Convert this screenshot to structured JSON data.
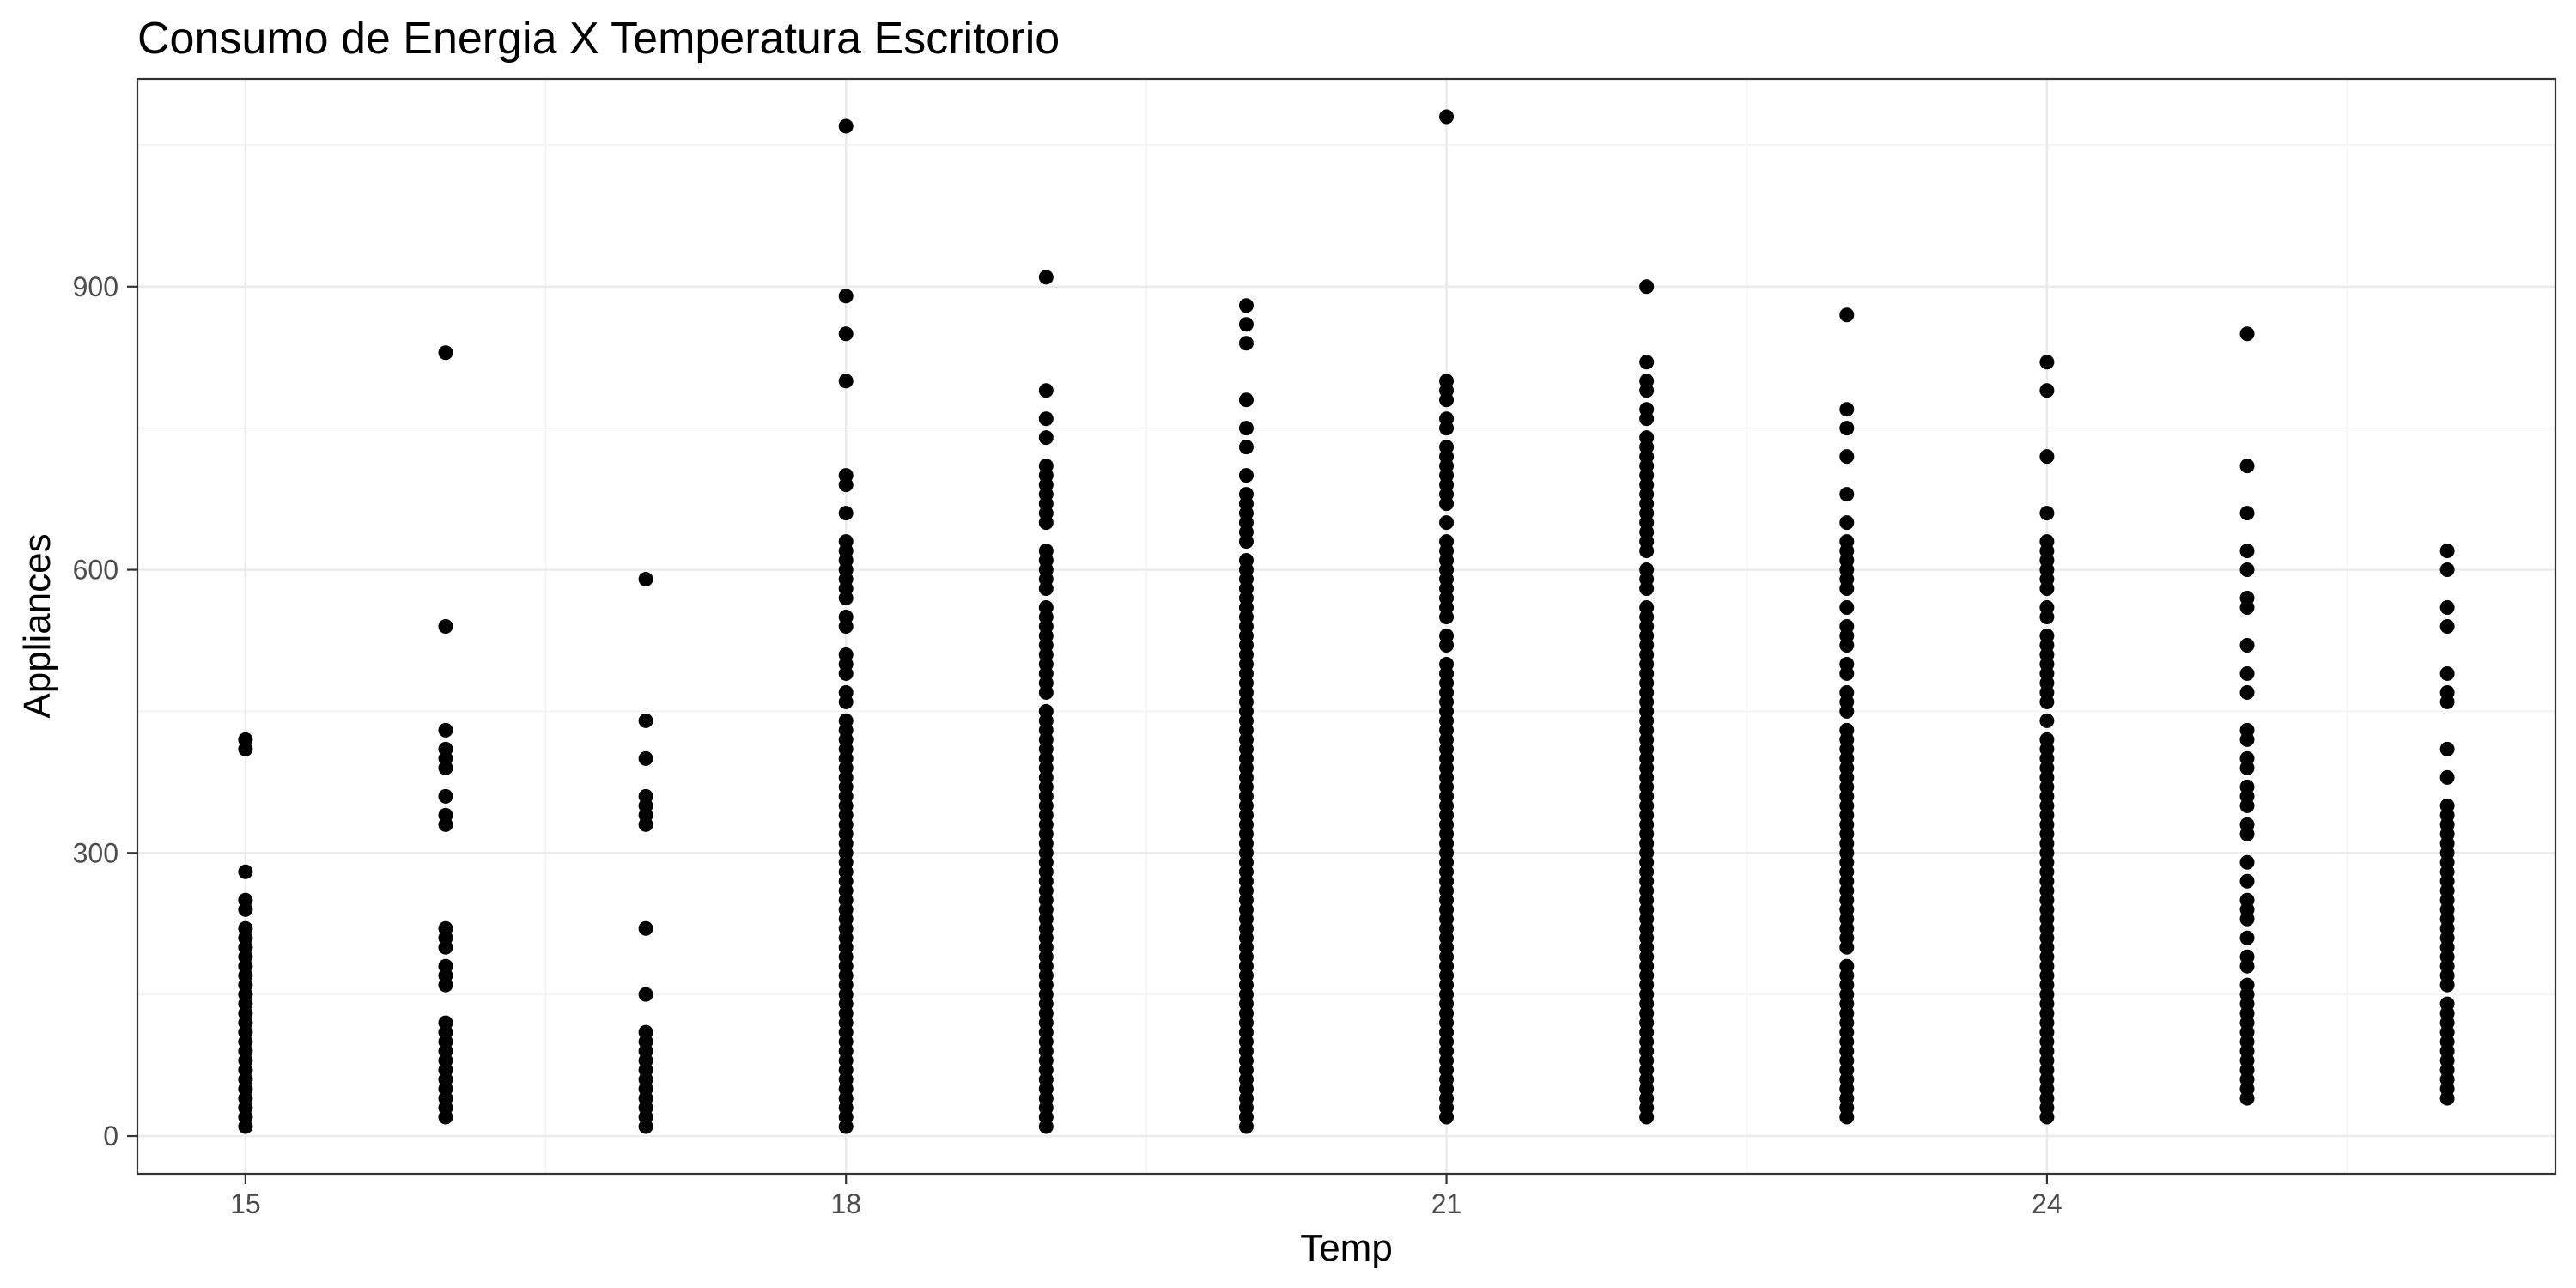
{
  "chart_data": {
    "type": "scatter",
    "title": "Consumo de Energia X Temperatura Escritorio",
    "xlabel": "Temp",
    "ylabel": "Appliances",
    "xlim": [
      14.46,
      26.54
    ],
    "ylim": [
      -40,
      1120
    ],
    "x_ticks": [
      15,
      18,
      21,
      24
    ],
    "y_ticks": [
      0,
      300,
      600,
      900
    ],
    "x_tick_labels": [
      "15",
      "18",
      "21",
      "24"
    ],
    "y_tick_labels": [
      "0",
      "300",
      "600",
      "900"
    ],
    "grid": true,
    "legend": "none",
    "point_color": "#000000",
    "groups": [
      {
        "x": 15,
        "values": [
          420,
          410,
          280,
          250,
          240,
          220,
          210,
          200,
          190,
          180,
          170,
          160,
          150,
          140,
          130,
          120,
          110,
          100,
          90,
          80,
          70,
          60,
          50,
          40,
          30,
          20,
          10
        ]
      },
      {
        "x": 16,
        "values": [
          830,
          540,
          430,
          410,
          400,
          390,
          360,
          340,
          330,
          220,
          210,
          200,
          180,
          170,
          160,
          120,
          110,
          100,
          90,
          80,
          70,
          60,
          50,
          40,
          30,
          20
        ]
      },
      {
        "x": 17,
        "values": [
          590,
          440,
          400,
          360,
          350,
          340,
          330,
          220,
          150,
          110,
          100,
          90,
          80,
          70,
          60,
          50,
          40,
          30,
          20,
          10
        ]
      },
      {
        "x": 18,
        "values": [
          1070,
          890,
          850,
          800,
          700,
          690,
          660,
          630,
          620,
          610,
          600,
          590,
          580,
          570,
          550,
          540,
          510,
          500,
          490,
          470,
          460,
          440,
          430,
          420,
          410,
          400,
          390,
          380,
          370,
          360,
          350,
          340,
          330,
          320,
          310,
          300,
          290,
          280,
          270,
          260,
          250,
          240,
          230,
          220,
          210,
          200,
          190,
          180,
          170,
          160,
          150,
          140,
          130,
          120,
          110,
          100,
          90,
          80,
          70,
          60,
          50,
          40,
          30,
          20,
          10
        ]
      },
      {
        "x": 19,
        "values": [
          910,
          790,
          760,
          740,
          710,
          700,
          690,
          680,
          670,
          660,
          650,
          620,
          610,
          600,
          590,
          580,
          560,
          550,
          540,
          530,
          520,
          510,
          500,
          490,
          480,
          470,
          450,
          440,
          430,
          420,
          410,
          400,
          390,
          380,
          370,
          360,
          350,
          340,
          330,
          320,
          310,
          300,
          290,
          280,
          270,
          260,
          250,
          240,
          230,
          220,
          210,
          200,
          190,
          180,
          170,
          160,
          150,
          140,
          130,
          120,
          110,
          100,
          90,
          80,
          70,
          60,
          50,
          40,
          30,
          20,
          10
        ]
      },
      {
        "x": 20,
        "values": [
          880,
          860,
          840,
          780,
          750,
          730,
          700,
          680,
          670,
          660,
          650,
          640,
          630,
          610,
          600,
          590,
          580,
          570,
          560,
          550,
          540,
          530,
          520,
          510,
          500,
          490,
          480,
          470,
          460,
          450,
          440,
          430,
          420,
          410,
          400,
          390,
          380,
          370,
          360,
          350,
          340,
          330,
          320,
          310,
          300,
          290,
          280,
          270,
          260,
          250,
          240,
          230,
          220,
          210,
          200,
          190,
          180,
          170,
          160,
          150,
          140,
          130,
          120,
          110,
          100,
          90,
          80,
          70,
          60,
          50,
          40,
          30,
          20,
          10
        ]
      },
      {
        "x": 21,
        "values": [
          1080,
          800,
          790,
          780,
          760,
          750,
          730,
          720,
          710,
          700,
          690,
          680,
          670,
          650,
          630,
          620,
          610,
          600,
          590,
          580,
          570,
          560,
          550,
          530,
          520,
          500,
          490,
          480,
          470,
          460,
          450,
          440,
          430,
          420,
          410,
          400,
          390,
          380,
          370,
          360,
          350,
          340,
          330,
          320,
          310,
          300,
          290,
          280,
          270,
          260,
          250,
          240,
          230,
          220,
          210,
          200,
          190,
          180,
          170,
          160,
          150,
          140,
          130,
          120,
          110,
          100,
          90,
          80,
          70,
          60,
          50,
          40,
          30,
          20
        ]
      },
      {
        "x": 22,
        "values": [
          900,
          820,
          800,
          790,
          770,
          760,
          740,
          730,
          720,
          710,
          700,
          690,
          680,
          670,
          660,
          650,
          640,
          630,
          620,
          600,
          590,
          580,
          560,
          550,
          540,
          530,
          520,
          510,
          500,
          490,
          480,
          470,
          460,
          450,
          440,
          430,
          420,
          410,
          400,
          390,
          380,
          370,
          360,
          350,
          340,
          330,
          320,
          310,
          300,
          290,
          280,
          270,
          260,
          250,
          240,
          230,
          220,
          210,
          200,
          190,
          180,
          170,
          160,
          150,
          140,
          130,
          120,
          110,
          100,
          90,
          80,
          70,
          60,
          50,
          40,
          30,
          20
        ]
      },
      {
        "x": 23,
        "values": [
          870,
          770,
          750,
          720,
          680,
          650,
          630,
          620,
          610,
          600,
          590,
          580,
          560,
          540,
          530,
          520,
          500,
          490,
          470,
          460,
          450,
          430,
          420,
          410,
          400,
          390,
          380,
          370,
          360,
          350,
          340,
          330,
          320,
          310,
          300,
          290,
          280,
          270,
          260,
          250,
          240,
          230,
          220,
          210,
          200,
          180,
          170,
          160,
          150,
          140,
          130,
          120,
          110,
          100,
          90,
          80,
          70,
          60,
          50,
          40,
          30,
          20
        ]
      },
      {
        "x": 24,
        "values": [
          820,
          790,
          720,
          660,
          630,
          620,
          610,
          600,
          590,
          580,
          560,
          550,
          530,
          520,
          510,
          500,
          490,
          480,
          470,
          460,
          440,
          420,
          410,
          400,
          390,
          380,
          370,
          360,
          350,
          340,
          330,
          320,
          310,
          300,
          290,
          280,
          270,
          260,
          250,
          240,
          230,
          220,
          210,
          200,
          190,
          180,
          170,
          160,
          150,
          140,
          130,
          120,
          110,
          100,
          90,
          80,
          70,
          60,
          50,
          40,
          30,
          20
        ]
      },
      {
        "x": 25,
        "values": [
          850,
          710,
          660,
          620,
          600,
          570,
          560,
          520,
          490,
          470,
          430,
          420,
          400,
          390,
          370,
          360,
          350,
          330,
          320,
          290,
          270,
          250,
          240,
          230,
          210,
          190,
          180,
          160,
          150,
          140,
          130,
          120,
          110,
          100,
          90,
          80,
          70,
          60,
          50,
          40
        ]
      },
      {
        "x": 26,
        "values": [
          620,
          600,
          560,
          540,
          490,
          470,
          460,
          410,
          380,
          350,
          340,
          330,
          320,
          310,
          300,
          290,
          280,
          270,
          260,
          250,
          240,
          230,
          220,
          210,
          200,
          190,
          180,
          170,
          160,
          140,
          130,
          120,
          110,
          100,
          90,
          80,
          70,
          60,
          50,
          40
        ]
      }
    ]
  }
}
